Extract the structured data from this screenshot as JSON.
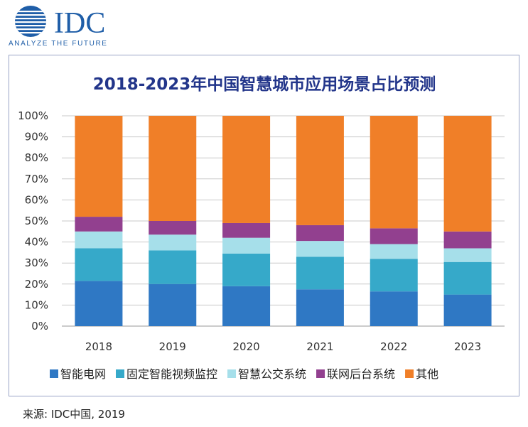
{
  "logo": {
    "text": "IDC",
    "tagline": "ANALYZE THE FUTURE",
    "color": "#1f5ea8"
  },
  "source": "来源: IDC中国, 2019",
  "chart_data": {
    "type": "bar",
    "stacked": true,
    "percent": true,
    "title": "2018-2023年中国智慧城市应用场景占比预测",
    "xlabel": "",
    "ylabel": "",
    "categories": [
      "2018",
      "2019",
      "2020",
      "2021",
      "2022",
      "2023"
    ],
    "ylim": [
      0,
      100
    ],
    "yticks": [
      "0%",
      "10%",
      "20%",
      "30%",
      "40%",
      "50%",
      "60%",
      "70%",
      "80%",
      "90%",
      "100%"
    ],
    "grid": true,
    "legend": "bottom",
    "series": [
      {
        "name": "智能电网",
        "color": "#2f78c4",
        "values": [
          21.5,
          20.0,
          19.0,
          17.5,
          16.5,
          15.0
        ]
      },
      {
        "name": "固定智能视频监控",
        "color": "#36a9c9",
        "values": [
          15.5,
          16.0,
          15.5,
          15.5,
          15.5,
          15.5
        ]
      },
      {
        "name": "智慧公交系统",
        "color": "#a6dfea",
        "values": [
          8.0,
          7.5,
          7.5,
          7.5,
          7.0,
          6.5
        ]
      },
      {
        "name": "联网后台系统",
        "color": "#92408f",
        "values": [
          7.0,
          6.5,
          7.0,
          7.5,
          7.5,
          8.0
        ]
      },
      {
        "name": "其他",
        "color": "#f07f28",
        "values": [
          48.0,
          50.0,
          51.0,
          52.0,
          53.5,
          55.0
        ]
      }
    ]
  }
}
